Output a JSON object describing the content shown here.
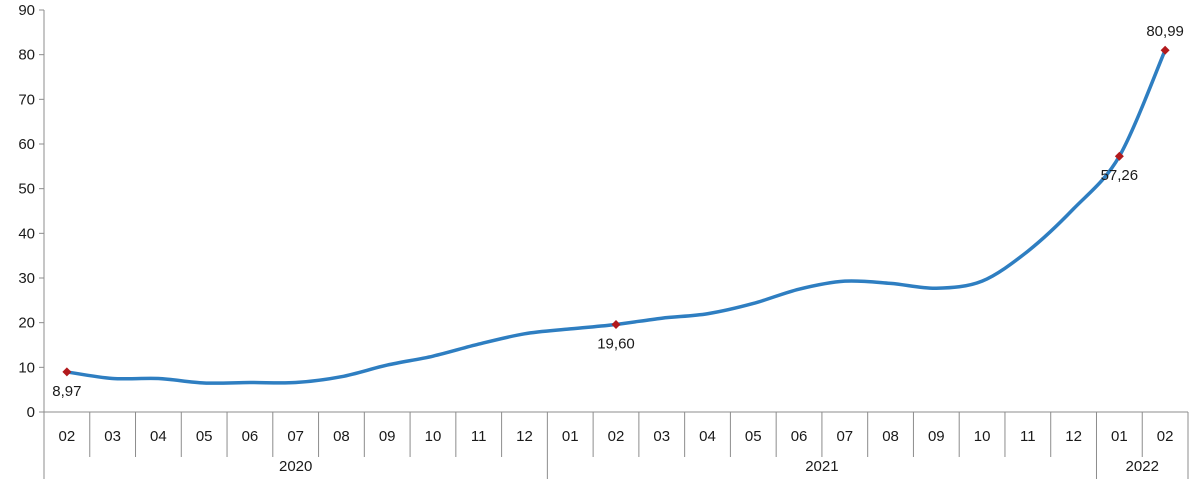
{
  "chart_data": {
    "type": "line",
    "title": "",
    "xlabel": "",
    "ylabel": "",
    "ylim": [
      0,
      90
    ],
    "y_ticks": [
      "0",
      "10",
      "20",
      "30",
      "40",
      "50",
      "60",
      "70",
      "80",
      "90"
    ],
    "grid": false,
    "legend": "none",
    "categories": [
      "02",
      "03",
      "04",
      "05",
      "06",
      "07",
      "08",
      "09",
      "10",
      "11",
      "12",
      "01",
      "02",
      "03",
      "04",
      "05",
      "06",
      "07",
      "08",
      "09",
      "10",
      "11",
      "12",
      "01",
      "02"
    ],
    "year_groups": [
      {
        "label": "2020",
        "start": 0,
        "end": 10
      },
      {
        "label": "2021",
        "start": 11,
        "end": 22
      },
      {
        "label": "2022",
        "start": 23,
        "end": 24
      }
    ],
    "series": [
      {
        "color": "#2E7EC1",
        "values": [
          8.97,
          7.5,
          7.5,
          6.5,
          6.6,
          6.6,
          7.9,
          10.5,
          12.5,
          15.2,
          17.5,
          18.6,
          19.6,
          21.0,
          22.0,
          24.3,
          27.5,
          29.3,
          28.8,
          27.7,
          29.3,
          36.0,
          45.5,
          57.26,
          80.99
        ]
      }
    ],
    "marker_color": "#B2191C",
    "annotations": [
      {
        "index": 0,
        "text": "8,97",
        "position": "below"
      },
      {
        "index": 12,
        "text": "19,60",
        "position": "below"
      },
      {
        "index": 23,
        "text": "57,26",
        "position": "below"
      },
      {
        "index": 24,
        "text": "80,99",
        "position": "above"
      }
    ],
    "colors": {
      "line": "#2E7EC1",
      "marker": "#B2191C",
      "axis": "#8c8c8c",
      "text": "#1a1a1a"
    }
  }
}
